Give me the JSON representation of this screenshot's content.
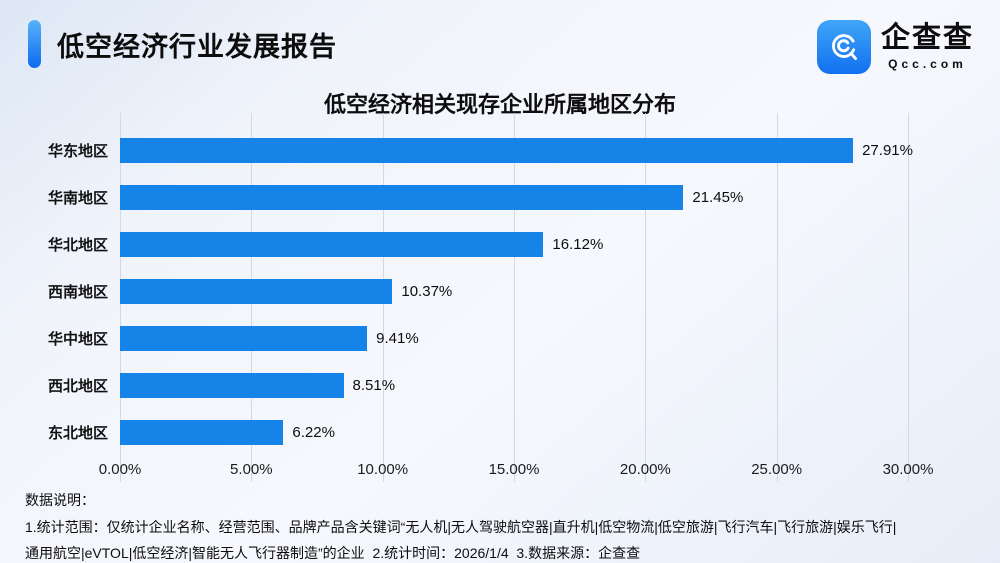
{
  "header": {
    "report_title": "低空经济行业发展报告",
    "logo": {
      "brand_name": "企查查",
      "brand_domain": "Qcc.com"
    }
  },
  "chart_data": {
    "type": "bar",
    "orientation": "horizontal",
    "title": "低空经济相关现存企业所属地区分布",
    "categories": [
      "华东地区",
      "华南地区",
      "华北地区",
      "西南地区",
      "华中地区",
      "西北地区",
      "东北地区"
    ],
    "values": [
      27.91,
      21.45,
      16.12,
      10.37,
      9.41,
      8.51,
      6.22
    ],
    "value_labels": [
      "27.91%",
      "21.45%",
      "16.12%",
      "10.37%",
      "9.41%",
      "8.51%",
      "6.22%"
    ],
    "x_ticks": [
      "0.00%",
      "5.00%",
      "10.00%",
      "15.00%",
      "20.00%",
      "25.00%",
      "30.00%"
    ],
    "xlim": [
      0,
      30
    ],
    "xlabel": "",
    "ylabel": "",
    "bar_color": "#1583e7",
    "grid": true,
    "legend": "none"
  },
  "footer": {
    "notes_title": "数据说明：",
    "note_line1": "1.统计范围：仅统计企业名称、经营范围、品牌产品含关键词“无人机|无人驾驶航空器|直升机|低空物流|低空旅游|飞行汽车|飞行旅游|娱乐飞行|",
    "note_line2": "通用航空|eVTOL|低空经济|智能无人飞行器制造”的企业  2.统计时间：2026/1/4  3.数据来源：企查查"
  }
}
